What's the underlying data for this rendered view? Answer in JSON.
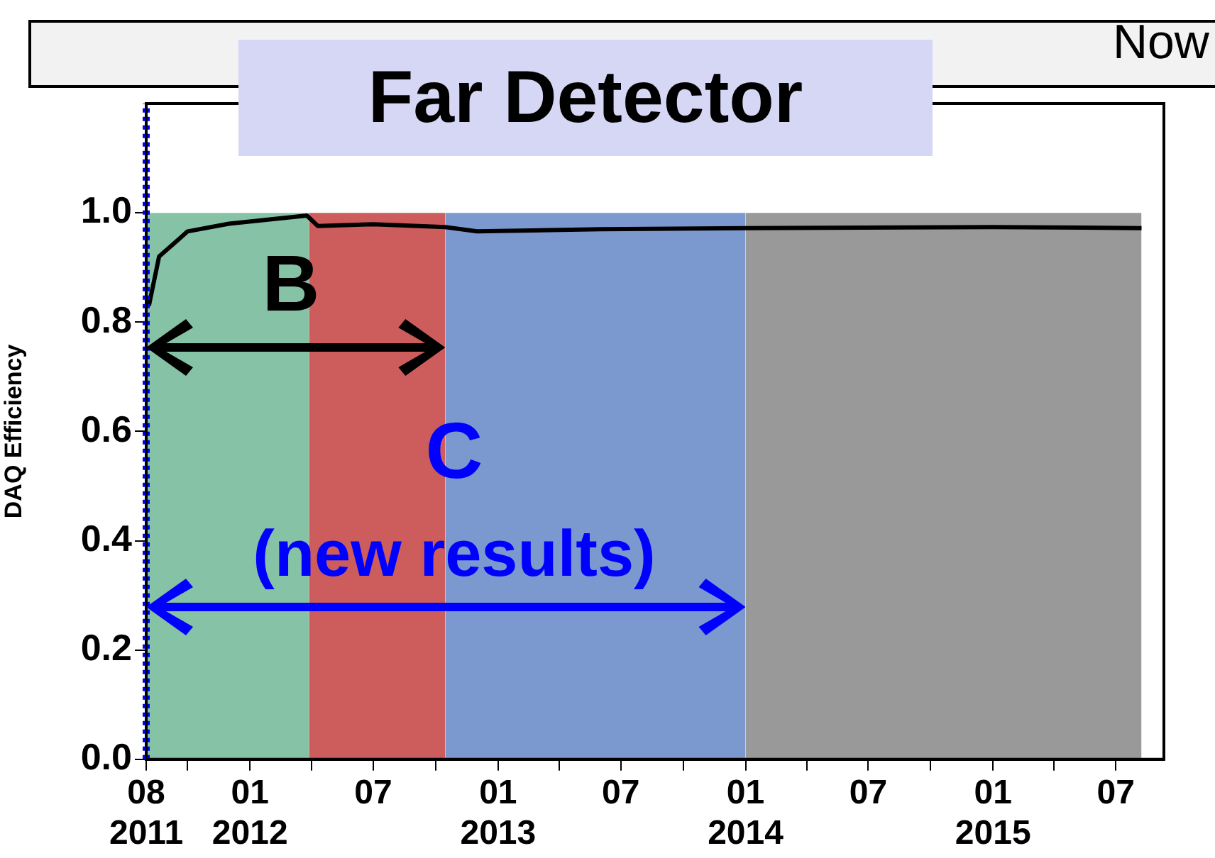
{
  "chart_data": {
    "type": "area",
    "title": "Far Detector",
    "ylabel": "DAQ Efficiency",
    "xlim": [
      "2011-08-01",
      "2015-09-10"
    ],
    "ylim": [
      0,
      1.2
    ],
    "xticks": [
      {
        "value": "2011-08-01",
        "label": "08\n2011"
      },
      {
        "value": "2011-10-01",
        "label": null
      },
      {
        "value": "2012-01-01",
        "label": "01\n2012"
      },
      {
        "value": "2012-04-01",
        "label": null
      },
      {
        "value": "2012-07-01",
        "label": "07"
      },
      {
        "value": "2012-10-01",
        "label": null
      },
      {
        "value": "2013-01-01",
        "label": "01\n2013"
      },
      {
        "value": "2013-04-01",
        "label": null
      },
      {
        "value": "2013-07-01",
        "label": "07"
      },
      {
        "value": "2013-10-01",
        "label": null
      },
      {
        "value": "2014-01-01",
        "label": "01\n2014"
      },
      {
        "value": "2014-04-01",
        "label": null
      },
      {
        "value": "2014-07-01",
        "label": "07"
      },
      {
        "value": "2014-10-01",
        "label": null
      },
      {
        "value": "2015-01-01",
        "label": "01\n2015"
      },
      {
        "value": "2015-04-01",
        "label": null
      },
      {
        "value": "2015-07-01",
        "label": "07"
      }
    ],
    "yticks": [
      {
        "value": 0,
        "label": "0.0"
      },
      {
        "value": 0.2,
        "label": "0.2"
      },
      {
        "value": 0.4,
        "label": "0.4"
      },
      {
        "value": 0.6,
        "label": "0.6"
      },
      {
        "value": 0.8,
        "label": "0.8"
      },
      {
        "value": 1,
        "label": "1.0"
      }
    ],
    "grid": false,
    "legend": false,
    "series": [
      {
        "type": "area",
        "color": "#86c2a5",
        "x": [
          "2011-08-01",
          "2012-03-28"
        ],
        "values": [
          1,
          1
        ]
      },
      {
        "type": "area",
        "color": "#cd5c5c",
        "x": [
          "2012-03-28",
          "2012-10-15"
        ],
        "values": [
          1,
          1
        ]
      },
      {
        "type": "area",
        "color": "#7b99cf",
        "x": [
          "2012-10-15",
          "2014-01-01"
        ],
        "values": [
          1,
          1
        ]
      },
      {
        "type": "area",
        "color": "#999999",
        "x": [
          "2014-01-01",
          "2015-08-08"
        ],
        "values": [
          1,
          1
        ]
      },
      {
        "type": "line",
        "color": "#000000",
        "x": [
          "2011-08-05",
          "2011-08-20",
          "2011-10-01",
          "2011-12-01",
          "2012-03-25",
          "2012-04-10",
          "2012-07-01",
          "2012-10-15",
          "2012-12-01",
          "2013-06-01",
          "2014-01-01",
          "2015-01-01",
          "2015-08-08"
        ],
        "values": [
          0.83,
          0.92,
          0.966,
          0.98,
          0.995,
          0.976,
          0.979,
          0.974,
          0.966,
          0.97,
          0.972,
          0.974,
          0.972
        ]
      }
    ],
    "ref_lines": [
      {
        "axis": "x",
        "value": "2011-08-01",
        "color": "#0000ff",
        "line_style": "dotted"
      }
    ],
    "annotations": [
      "B",
      "C",
      "(new results)",
      "Now"
    ]
  }
}
